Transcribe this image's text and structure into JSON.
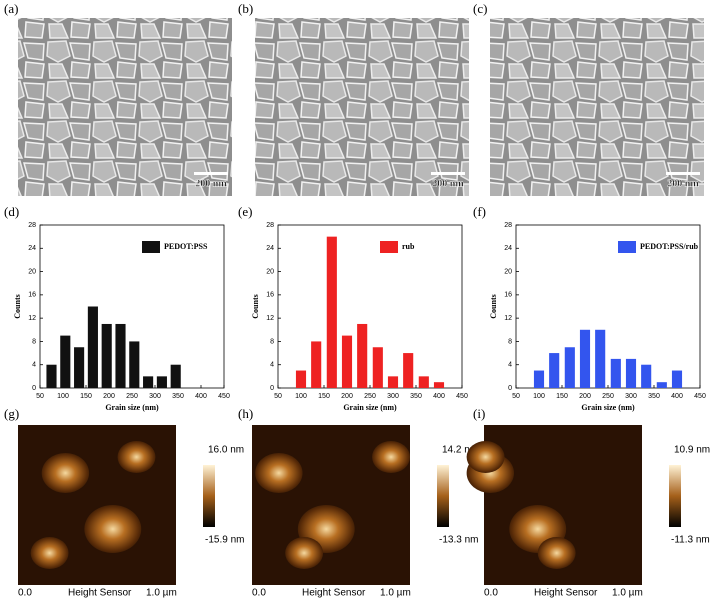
{
  "panel_labels": [
    "(a)",
    "(b)",
    "(c)",
    "(d)",
    "(e)",
    "(f)",
    "(g)",
    "(h)",
    "(i)"
  ],
  "sem_images": [
    {
      "scale_bar": "200 nm"
    },
    {
      "scale_bar": "200 nm"
    },
    {
      "scale_bar": "200 nm"
    }
  ],
  "chart_data": [
    {
      "type": "bar",
      "x": [
        75,
        105,
        135,
        165,
        195,
        225,
        255,
        285,
        315,
        345
      ],
      "series": [
        {
          "name": "PEDOT:PSS",
          "color": "#111111",
          "values": [
            4,
            9,
            7,
            14,
            11,
            11,
            8,
            2,
            2,
            4
          ]
        }
      ],
      "xlabel": "Grain size (nm)",
      "ylabel": "Counts",
      "xlim": [
        50,
        450
      ],
      "xticks": [
        50,
        100,
        150,
        200,
        250,
        300,
        350,
        400,
        450
      ],
      "ylim": [
        0,
        28
      ],
      "yticks": [
        0,
        4,
        8,
        12,
        16,
        20,
        24,
        28
      ],
      "legend": "upper right"
    },
    {
      "type": "bar",
      "x": [
        100,
        133,
        167,
        200,
        233,
        267,
        300,
        333,
        367,
        400
      ],
      "series": [
        {
          "name": "rub",
          "color": "#ee2222",
          "values": [
            3,
            8,
            26,
            9,
            11,
            7,
            2,
            6,
            2,
            1
          ]
        }
      ],
      "xlabel": "Grain size (nm)",
      "ylabel": "Counts",
      "xlim": [
        50,
        450
      ],
      "xticks": [
        50,
        100,
        150,
        200,
        250,
        300,
        350,
        400,
        450
      ],
      "ylim": [
        0,
        28
      ],
      "yticks": [
        0,
        4,
        8,
        12,
        16,
        20,
        24,
        28
      ],
      "legend": "upper right"
    },
    {
      "type": "bar",
      "x": [
        100,
        133,
        167,
        200,
        233,
        267,
        300,
        333,
        367,
        400
      ],
      "series": [
        {
          "name": "PEDOT:PSS/rub",
          "color": "#3355ee",
          "values": [
            3,
            6,
            7,
            10,
            10,
            5,
            5,
            4,
            1,
            3
          ]
        }
      ],
      "xlabel": "Grain size (nm)",
      "ylabel": "Counts",
      "xlim": [
        50,
        450
      ],
      "xticks": [
        50,
        100,
        150,
        200,
        250,
        300,
        350,
        400,
        450
      ],
      "ylim": [
        0,
        28
      ],
      "yticks": [
        0,
        4,
        8,
        12,
        16,
        20,
        24,
        28
      ],
      "legend": "upper right"
    }
  ],
  "afm_images": [
    {
      "max": "16.0 nm",
      "min": "-15.9 nm",
      "x_start": "0.0",
      "x_label": "Height Sensor",
      "x_end": "1.0 µm"
    },
    {
      "max": "14.2 nm",
      "min": "-13.3 nm",
      "x_start": "0.0",
      "x_label": "Height Sensor",
      "x_end": "1.0 µm"
    },
    {
      "max": "10.9 nm",
      "min": "-11.3 nm",
      "x_start": "0.0",
      "x_label": "Height Sensor",
      "x_end": "1.0 µm"
    }
  ]
}
